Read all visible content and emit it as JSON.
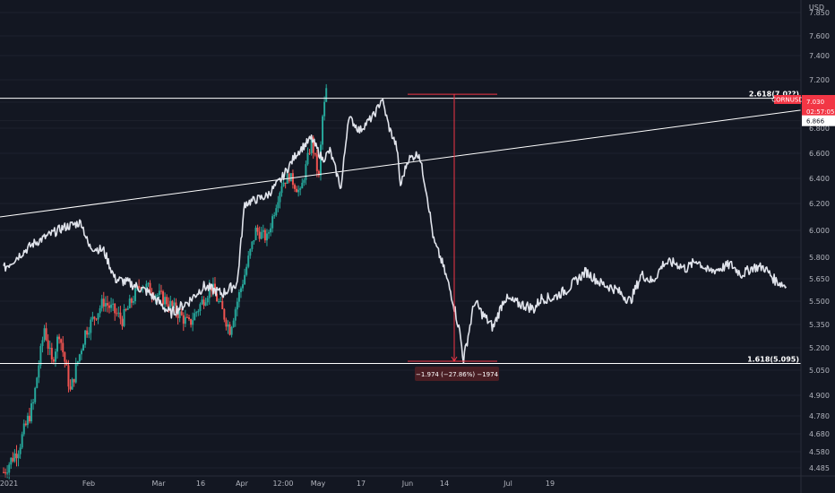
{
  "chart_data": {
    "type": "candlestick",
    "currency": "USD",
    "y_ticks": [
      "7.850",
      "7.600",
      "7.400",
      "7.200",
      "7.030",
      "6.866",
      "6.800",
      "6.600",
      "6.400",
      "6.200",
      "6.000",
      "5.800",
      "5.650",
      "5.500",
      "5.350",
      "5.200",
      "5.050",
      "4.900",
      "4.780",
      "4.680",
      "4.580",
      "4.485"
    ],
    "x_ticks": [
      "2021",
      "Feb",
      "Mar",
      "16",
      "Apr",
      "12:00",
      "May",
      "17",
      "Jun",
      "14",
      "Jul",
      "19"
    ],
    "symbol": "CORNUSD",
    "last_price": "7.030",
    "countdown": "02:57:05",
    "marker_price": "6.866",
    "levels": [
      {
        "label": "2.618(7.0??)",
        "value": 7.06,
        "color": "#ffffff"
      },
      {
        "label": "1.618(5.095)",
        "value": 5.095,
        "color": "#ffffff"
      }
    ],
    "measure": {
      "label": "−1.974 (−27.86%) −1974",
      "from": 7.09,
      "to": 5.11
    },
    "trendline": {
      "from": 6.1,
      "to": 6.96
    },
    "colors": {
      "up": "#26a69a",
      "down": "#ef5350",
      "line": "#e0e3eb",
      "grid": "#1e222d",
      "accent": "#f23645"
    },
    "series": [
      {
        "name": "CORNUSD",
        "style": "candles",
        "waypoints": [
          [
            0,
            4.46
          ],
          [
            4,
            4.6
          ],
          [
            8,
            4.85
          ],
          [
            11,
            5.33
          ],
          [
            13,
            5.1
          ],
          [
            15,
            5.3
          ],
          [
            18,
            4.92
          ],
          [
            22,
            5.3
          ],
          [
            27,
            5.5
          ],
          [
            32,
            5.38
          ],
          [
            37,
            5.62
          ],
          [
            44,
            5.5
          ],
          [
            50,
            5.35
          ],
          [
            56,
            5.6
          ],
          [
            61,
            5.32
          ],
          [
            65,
            5.68
          ],
          [
            68,
            6.0
          ],
          [
            71,
            5.94
          ],
          [
            75,
            6.36
          ],
          [
            77,
            6.42
          ],
          [
            80,
            6.28
          ],
          [
            83,
            6.7
          ],
          [
            85,
            6.4
          ],
          [
            86,
            6.9
          ],
          [
            87,
            7.12
          ]
        ]
      },
      {
        "name": "CORNUSD2",
        "style": "line",
        "waypoints": [
          [
            0,
            5.72
          ],
          [
            8,
            5.9
          ],
          [
            16,
            6.02
          ],
          [
            21,
            6.06
          ],
          [
            23,
            5.88
          ],
          [
            27,
            5.85
          ],
          [
            30,
            5.65
          ],
          [
            34,
            5.62
          ],
          [
            39,
            5.56
          ],
          [
            45,
            5.42
          ],
          [
            50,
            5.5
          ],
          [
            54,
            5.6
          ],
          [
            59,
            5.55
          ],
          [
            63,
            5.62
          ],
          [
            65,
            6.2
          ],
          [
            68,
            6.23
          ],
          [
            71,
            6.26
          ],
          [
            75,
            6.4
          ],
          [
            79,
            6.6
          ],
          [
            83,
            6.72
          ],
          [
            86,
            6.55
          ],
          [
            88,
            6.62
          ],
          [
            91,
            6.32
          ],
          [
            93,
            6.9
          ],
          [
            96,
            6.78
          ],
          [
            100,
            6.92
          ],
          [
            102,
            7.06
          ],
          [
            104,
            6.8
          ],
          [
            106,
            6.65
          ],
          [
            107,
            6.34
          ],
          [
            109,
            6.55
          ],
          [
            112,
            6.6
          ],
          [
            114,
            6.3
          ],
          [
            116,
            5.92
          ],
          [
            118,
            5.78
          ],
          [
            121,
            5.52
          ],
          [
            123,
            5.3
          ],
          [
            124,
            5.12
          ],
          [
            127,
            5.5
          ],
          [
            129,
            5.42
          ],
          [
            132,
            5.33
          ],
          [
            135,
            5.52
          ],
          [
            138,
            5.49
          ],
          [
            141,
            5.47
          ],
          [
            143,
            5.45
          ],
          [
            145,
            5.52
          ],
          [
            148,
            5.52
          ],
          [
            152,
            5.58
          ],
          [
            157,
            5.7
          ],
          [
            161,
            5.62
          ],
          [
            165,
            5.58
          ],
          [
            169,
            5.5
          ],
          [
            172,
            5.68
          ],
          [
            175,
            5.63
          ],
          [
            178,
            5.76
          ],
          [
            181,
            5.76
          ],
          [
            184,
            5.72
          ],
          [
            187,
            5.78
          ],
          [
            190,
            5.7
          ],
          [
            193,
            5.72
          ],
          [
            196,
            5.75
          ],
          [
            199,
            5.68
          ],
          [
            202,
            5.73
          ],
          [
            205,
            5.73
          ],
          [
            208,
            5.64
          ],
          [
            211,
            5.6
          ]
        ]
      }
    ]
  }
}
